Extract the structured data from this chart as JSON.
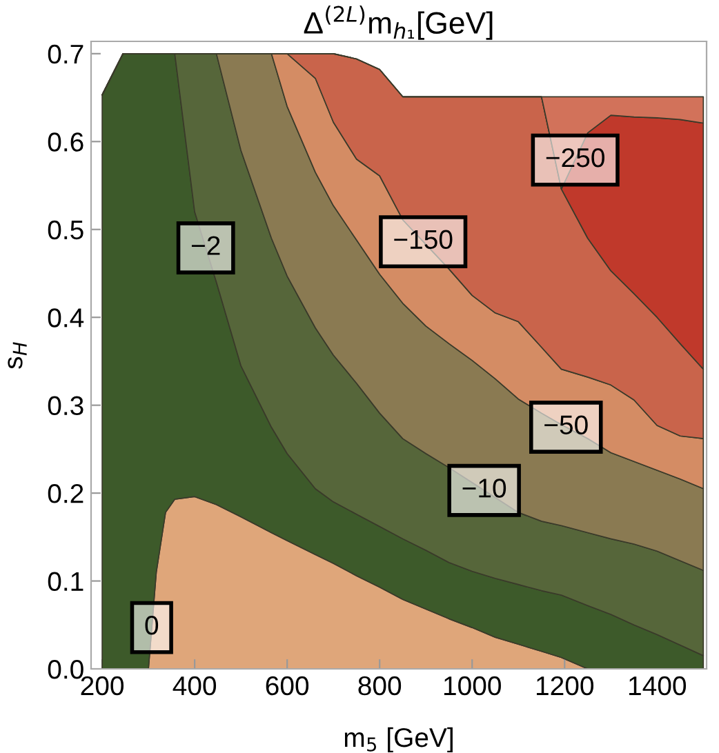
{
  "chart_data": {
    "type": "area",
    "stacked": true,
    "title": "Δ$^{(2L)}$m$_{h₁}$[GeV]",
    "xlabel": "m$_{5}$ [GeV]",
    "ylabel": "s$_{H}$",
    "xlim": [
      176,
      1507
    ],
    "ylim": [
      0,
      0.714
    ],
    "xticks": [
      200,
      400,
      600,
      800,
      1000,
      1200,
      1400
    ],
    "yticks": [
      {
        "value": 0,
        "label": "0.0"
      },
      0.1,
      0.2,
      0.3,
      0.4,
      0.5,
      0.6,
      0.7
    ],
    "grid": false,
    "x": [
      200,
      245,
      300,
      317,
      337,
      357,
      400,
      447,
      500,
      566,
      600,
      661,
      700,
      750,
      800,
      850,
      900,
      950,
      1000,
      1050,
      1100,
      1150,
      1193,
      1250,
      1300,
      1350,
      1400,
      1450,
      1500
    ],
    "series": [
      {
        "color": "#dfa67a",
        "values": [
          0,
          0,
          0,
          0.11,
          0.178,
          0.193,
          0.196,
          0.187,
          0.173,
          0.155,
          0.146,
          0.13,
          0.12,
          0.106,
          0.093,
          0.079,
          0.068,
          0.057,
          0.047,
          0.036,
          0.028,
          0.02,
          0.013,
          0,
          0,
          0,
          0,
          0,
          0
        ]
      },
      {
        "color": "#3d5a2a",
        "values": [
          0.653,
          0.7,
          0.7,
          0.59,
          0.522,
          0.507,
          0.324,
          0.253,
          0.172,
          0.12,
          0.099,
          0.075,
          0.07,
          0.07,
          0.069,
          0.069,
          0.067,
          0.064,
          0.064,
          0.067,
          0.068,
          0.069,
          0.071,
          0.072,
          0.062,
          0.05,
          0.039,
          0.027,
          0.015
        ]
      },
      {
        "color": "#56663a",
        "values": [
          0,
          0,
          0,
          0,
          0,
          0,
          0.18,
          0.26,
          0.245,
          0.215,
          0.202,
          0.183,
          0.167,
          0.149,
          0.129,
          0.114,
          0.11,
          0.108,
          0.101,
          0.092,
          0.082,
          0.079,
          0.079,
          0.083,
          0.086,
          0.092,
          0.095,
          0.096,
          0.097
        ]
      },
      {
        "color": "#8a7a52",
        "values": [
          0,
          0,
          0,
          0,
          0,
          0,
          0,
          0,
          0.11,
          0.21,
          0.193,
          0.177,
          0.17,
          0.163,
          0.158,
          0.154,
          0.145,
          0.141,
          0.139,
          0.135,
          0.129,
          0.123,
          0.115,
          0.107,
          0.098,
          0.094,
          0.092,
          0.093,
          0.093
        ]
      },
      {
        "color": "#d48c64",
        "values": [
          0,
          0,
          0,
          0,
          0,
          0,
          0,
          0,
          0,
          0,
          0.06,
          0.107,
          0.095,
          0.092,
          0.112,
          0.095,
          0.093,
          0.085,
          0.074,
          0.075,
          0.088,
          0.075,
          0.063,
          0.07,
          0.077,
          0.07,
          0.051,
          0.049,
          0.057
        ]
      },
      {
        "color": "#c9644b",
        "values": [
          0,
          0,
          0,
          0,
          0,
          0,
          0,
          0,
          0,
          0,
          0,
          0.028,
          0.078,
          0.114,
          0.121,
          0.14,
          0.168,
          0.196,
          0.226,
          0.246,
          0.256,
          0.285,
          0.205,
          0.158,
          0.13,
          0.121,
          0.123,
          0.105,
          0.079
        ]
      },
      {
        "color": "#c0392b",
        "values": [
          0,
          0,
          0,
          0,
          0,
          0,
          0,
          0,
          0,
          0,
          0,
          0,
          0,
          0,
          0,
          0,
          0,
          0,
          0,
          0,
          0,
          0,
          0,
          0.12,
          0.177,
          0.201,
          0.227,
          0.255,
          0.28
        ]
      },
      {
        "color": "#d2725a",
        "values": [
          0,
          0,
          0,
          0,
          0,
          0,
          0,
          0,
          0,
          0,
          0,
          0,
          0,
          0,
          0,
          0,
          0,
          0,
          0,
          0,
          0,
          0,
          0.105,
          0.041,
          0.021,
          0.023,
          0.024,
          0.026,
          0.03
        ]
      }
    ],
    "annotations": [
      {
        "text": "−2",
        "x": 424,
        "y": 0.479
      },
      {
        "text": "−150",
        "x": 894,
        "y": 0.486
      },
      {
        "text": "−250",
        "x": 1223,
        "y": 0.579
      },
      {
        "text": "−50",
        "x": 1203,
        "y": 0.275
      },
      {
        "text": "−10",
        "x": 1026,
        "y": 0.203
      },
      {
        "text": "0",
        "x": 307,
        "y": 0.047
      }
    ]
  }
}
